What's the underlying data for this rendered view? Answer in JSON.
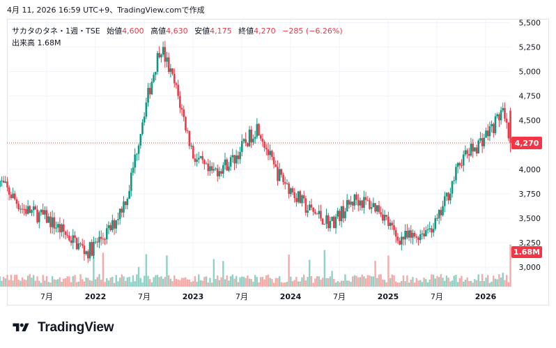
{
  "header": {
    "text": "4月 11, 2026 16:59 UTC+9、TradingView.comで作成"
  },
  "legend": {
    "symbol": "サカタのタネ・1週・TSE",
    "open_label": "始値",
    "open": "4,600",
    "high_label": "高値",
    "high": "4,630",
    "low_label": "安値",
    "low": "4,175",
    "close_label": "終値",
    "close": "4,270",
    "change": "−285 (−6.26%)",
    "volume_label": "出来高",
    "volume": "1.68M"
  },
  "colors": {
    "up": "#089981",
    "down": "#f23645",
    "up_volume": "#8fd1c5",
    "down_volume": "#f7a9a7",
    "grid": "#f0f3fa",
    "axis_text": "#131722"
  },
  "price_axis": {
    "ticks": [
      "5,500",
      "5,250",
      "5,000",
      "4,750",
      "4,500",
      "4,250",
      "4,000",
      "3,750",
      "3,500",
      "3,250",
      "3,000"
    ],
    "last_price_label": "4,270",
    "last_volume_label": "1.68M"
  },
  "time_axis": {
    "ticks": [
      "7月",
      "2022",
      "7月",
      "2023",
      "7月",
      "2024",
      "7月",
      "2025",
      "7月",
      "2026"
    ]
  },
  "logo": {
    "text": "TradingView"
  },
  "chart_data": {
    "type": "candlestick",
    "interval": "1W",
    "ylim": [
      2800,
      5500
    ],
    "last_close": 4270,
    "last_volume": "1.68M",
    "key_points": [
      {
        "x": "2021-01",
        "y": 3900
      },
      {
        "x": "2021-04",
        "y": 3600
      },
      {
        "x": "2021-07",
        "y": 3500
      },
      {
        "x": "2021-12",
        "y": 3150
      },
      {
        "x": "2022-03",
        "y": 3400
      },
      {
        "x": "2022-05",
        "y": 3750
      },
      {
        "x": "2022-07",
        "y": 4600
      },
      {
        "x": "2022-09",
        "y": 5270
      },
      {
        "x": "2022-11",
        "y": 4800
      },
      {
        "x": "2023-01",
        "y": 4150
      },
      {
        "x": "2023-03",
        "y": 3950
      },
      {
        "x": "2023-06",
        "y": 4100
      },
      {
        "x": "2023-09",
        "y": 4450
      },
      {
        "x": "2023-11",
        "y": 4000
      },
      {
        "x": "2024-03",
        "y": 3600
      },
      {
        "x": "2024-06",
        "y": 3450
      },
      {
        "x": "2024-09",
        "y": 3700
      },
      {
        "x": "2024-12",
        "y": 3600
      },
      {
        "x": "2025-02",
        "y": 3300
      },
      {
        "x": "2025-04",
        "y": 3300
      },
      {
        "x": "2025-07",
        "y": 3450
      },
      {
        "x": "2025-10",
        "y": 4100
      },
      {
        "x": "2025-12",
        "y": 4250
      },
      {
        "x": "2026-02",
        "y": 4450
      },
      {
        "x": "2026-03",
        "y": 4600
      },
      {
        "x": "2026-04",
        "y": 4270
      }
    ]
  }
}
